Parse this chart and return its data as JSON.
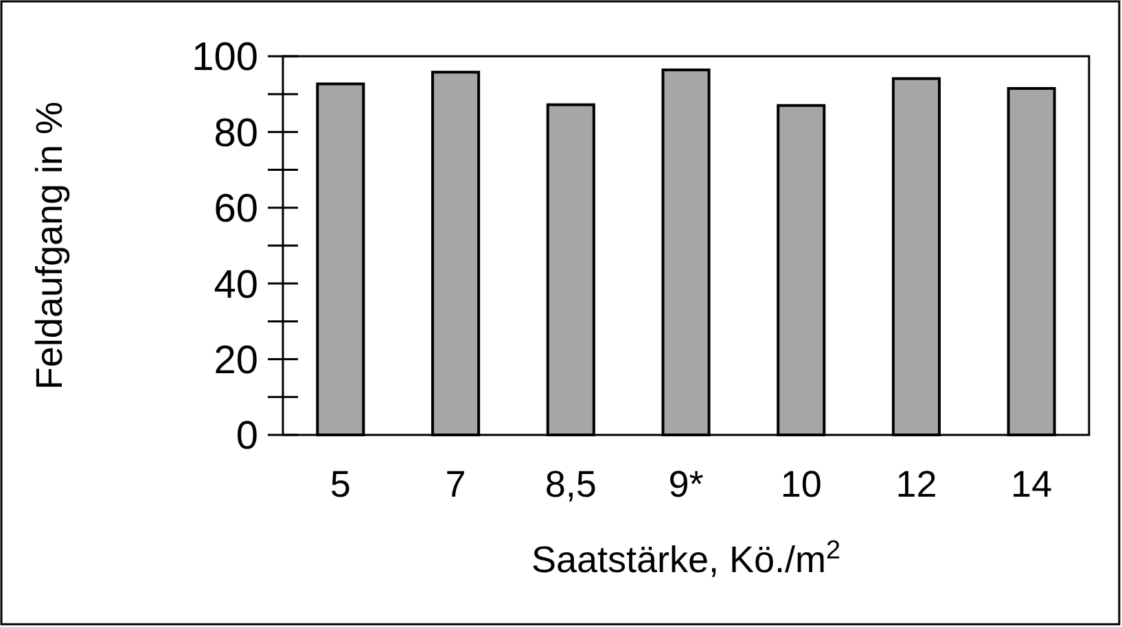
{
  "chart_data": {
    "type": "bar",
    "xlabel": "Saatstärke, Kö./m$^{2}$",
    "ylabel": "Feldaufgang in %",
    "categories": [
      "5",
      "7",
      "8,5",
      "9*",
      "10",
      "12",
      "14"
    ],
    "values": [
      92.7,
      95.8,
      87.2,
      96.4,
      87.0,
      94.1,
      91.5
    ],
    "color": "#a6a6a6",
    "ylim": [
      0,
      100
    ],
    "yticks": [
      0,
      20,
      40,
      60,
      80,
      100
    ],
    "grid": false
  }
}
